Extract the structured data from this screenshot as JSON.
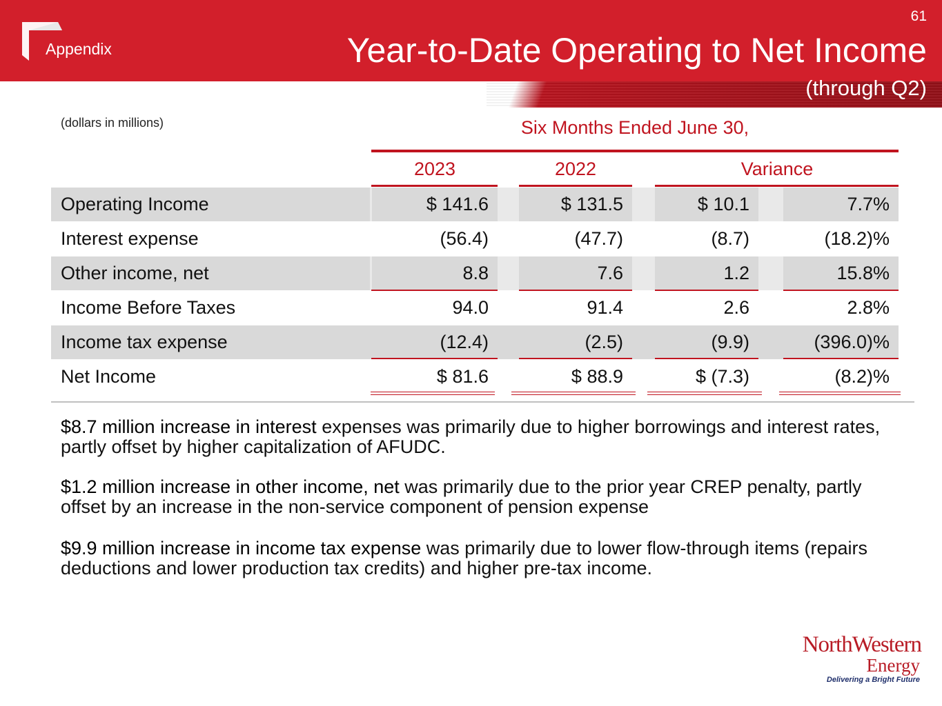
{
  "header": {
    "page_number": "61",
    "section": "Appendix",
    "title": "Year-to-Date Operating to Net Income",
    "subtitle": "(through Q2)"
  },
  "table": {
    "units_note": "(dollars in millions)",
    "period_header": "Six Months Ended June 30,",
    "columns": [
      "2023",
      "2022",
      "Variance"
    ],
    "rows": [
      {
        "label": "Operating Income",
        "v2023": "$ 141.6",
        "v2022": "$ 131.5",
        "var_amt": "$ 10.1",
        "var_pct": "7.7%"
      },
      {
        "label": "Interest expense",
        "v2023": "(56.4)",
        "v2022": "(47.7)",
        "var_amt": "(8.7)",
        "var_pct": "(18.2)%"
      },
      {
        "label": "Other income, net",
        "v2023": "8.8",
        "v2022": "7.6",
        "var_amt": "1.2",
        "var_pct": "15.8%"
      },
      {
        "label": "Income Before Taxes",
        "v2023": "94.0",
        "v2022": "91.4",
        "var_amt": "2.6",
        "var_pct": "2.8%"
      },
      {
        "label": "Income tax expense",
        "v2023": "(12.4)",
        "v2022": "(2.5)",
        "var_amt": "(9.9)",
        "var_pct": "(396.0)%"
      },
      {
        "label": "Net Income",
        "v2023": "$ 81.6",
        "v2022": "$ 88.9",
        "var_amt": "$ (7.3)",
        "var_pct": "(8.2)%"
      }
    ]
  },
  "notes": [
    {
      "lead": "$8.7 million increase in interest",
      "rest": " expenses was primarily due to higher borrowings and interest rates, partly offset by higher capitalization of AFUDC."
    },
    {
      "lead": "$1.2 million increase in other income, net",
      "rest": " was primarily due to the prior year CREP penalty, partly offset by an increase in the non-service component of pension expense"
    },
    {
      "lead": "$9.9 million increase in income tax expense",
      "rest": " was primarily due to lower flow-through items (repairs deductions and lower production tax credits) and higher pre-tax income."
    }
  ],
  "brand": {
    "name": "NorthWestern",
    "sub": "Energy",
    "tagline": "Delivering a Bright Future",
    "color": "#b81c26",
    "header_color": "#d21f2b"
  }
}
